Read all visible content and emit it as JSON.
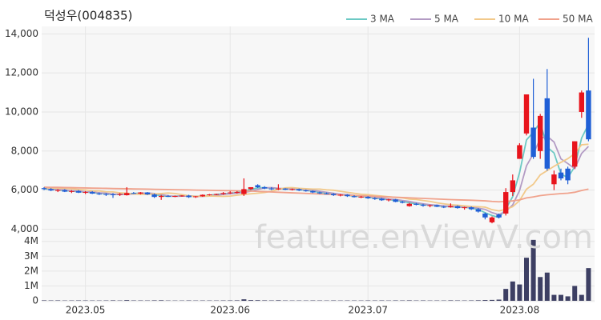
{
  "chart_data": {
    "type": "candlestick",
    "title": "덕성우(004835)",
    "watermark": "feature.enViewV.com",
    "up_color": "#e8141c",
    "down_color": "#1f5fd6",
    "grid": true,
    "categories": [
      null,
      null,
      null,
      null,
      null,
      null,
      "2023.05",
      null,
      null,
      null,
      null,
      null,
      null,
      null,
      null,
      null,
      null,
      null,
      null,
      null,
      null,
      null,
      null,
      null,
      null,
      null,
      null,
      "2023.06",
      null,
      null,
      null,
      null,
      null,
      null,
      null,
      null,
      null,
      null,
      null,
      null,
      null,
      null,
      null,
      null,
      null,
      null,
      null,
      "2023.07",
      null,
      null,
      null,
      null,
      null,
      null,
      null,
      null,
      null,
      null,
      null,
      null,
      null,
      null,
      null,
      null,
      null,
      null,
      null,
      null,
      null,
      "2023.08",
      null,
      null,
      null,
      null,
      null,
      null,
      null,
      null,
      null,
      null
    ],
    "open": [
      6100,
      6050,
      5980,
      6000,
      5920,
      5950,
      5870,
      5900,
      5820,
      5800,
      5780,
      5760,
      5740,
      5850,
      5820,
      5880,
      5780,
      5650,
      5700,
      5680,
      5700,
      5720,
      5640,
      5680,
      5760,
      5780,
      5800,
      5850,
      5880,
      5800,
      6050,
      6250,
      6150,
      6080,
      6050,
      6080,
      6020,
      6050,
      5980,
      5950,
      5880,
      5830,
      5800,
      5740,
      5760,
      5690,
      5640,
      5660,
      5580,
      5560,
      5480,
      5520,
      5400,
      5180,
      5300,
      5250,
      5200,
      5230,
      5150,
      5120,
      5180,
      5080,
      5120,
      5020,
      4800,
      4350,
      4750,
      4800,
      5900,
      7600,
      8900,
      9200,
      8000,
      10700,
      6300,
      6900,
      7100,
      7200,
      10000,
      11100
    ],
    "high": [
      6150,
      6100,
      6050,
      6050,
      6000,
      6000,
      5950,
      5950,
      5880,
      5850,
      5850,
      5850,
      6150,
      5900,
      5900,
      5900,
      5820,
      5750,
      5750,
      5720,
      5740,
      5760,
      5700,
      5780,
      5800,
      5820,
      5900,
      5950,
      5950,
      6600,
      6150,
      6300,
      6200,
      6150,
      6300,
      6100,
      6080,
      6080,
      6030,
      5980,
      5920,
      5880,
      5850,
      5800,
      5790,
      5740,
      5700,
      5690,
      5640,
      5600,
      5560,
      5550,
      5450,
      5350,
      5350,
      5300,
      5260,
      5260,
      5200,
      5320,
      5220,
      5150,
      5160,
      5080,
      4850,
      4650,
      4800,
      6100,
      6800,
      8400,
      10900,
      11700,
      9900,
      12200,
      7000,
      7100,
      7200,
      8500,
      11100,
      13800
    ],
    "low": [
      6000,
      5950,
      5900,
      5900,
      5850,
      5850,
      5800,
      5800,
      5750,
      5700,
      5600,
      5700,
      5720,
      5800,
      5780,
      5750,
      5600,
      5500,
      5650,
      5640,
      5660,
      5600,
      5600,
      5660,
      5720,
      5740,
      5760,
      5800,
      5820,
      5700,
      6000,
      6100,
      6050,
      6000,
      6000,
      6000,
      5980,
      5950,
      5920,
      5850,
      5800,
      5780,
      5700,
      5680,
      5650,
      5620,
      5590,
      5550,
      5500,
      5450,
      5420,
      5380,
      5320,
      5150,
      5220,
      5150,
      5120,
      5130,
      5080,
      5100,
      5050,
      5000,
      4980,
      4850,
      4500,
      4300,
      4550,
      4700,
      5700,
      7600,
      8800,
      7600,
      7600,
      7000,
      6000,
      6500,
      6300,
      7100,
      9700,
      8500
    ],
    "close": [
      6050,
      5980,
      6000,
      5920,
      5950,
      5870,
      5900,
      5820,
      5800,
      5780,
      5760,
      5800,
      5850,
      5820,
      5880,
      5780,
      5650,
      5700,
      5680,
      5700,
      5720,
      5640,
      5680,
      5760,
      5780,
      5800,
      5850,
      5880,
      5900,
      6050,
      6150,
      6150,
      6080,
      6050,
      6080,
      6020,
      6050,
      5980,
      5950,
      5880,
      5830,
      5800,
      5740,
      5760,
      5690,
      5640,
      5660,
      5580,
      5560,
      5480,
      5520,
      5400,
      5350,
      5300,
      5250,
      5200,
      5230,
      5150,
      5120,
      5180,
      5080,
      5120,
      5020,
      4900,
      4600,
      4600,
      4600,
      5900,
      6500,
      8300,
      10900,
      7700,
      9800,
      7100,
      6800,
      6600,
      6500,
      8500,
      11000,
      8600
    ],
    "series": [
      {
        "name": "3 MA",
        "color": "#6cc9c4",
        "values": [
          6070,
          6030,
          6010,
          5967,
          5957,
          5913,
          5907,
          5863,
          5840,
          5800,
          5780,
          5780,
          5803,
          5823,
          5850,
          5827,
          5770,
          5710,
          5677,
          5693,
          5700,
          5687,
          5680,
          5693,
          5740,
          5780,
          5810,
          5843,
          5877,
          5943,
          6033,
          6117,
          6127,
          6093,
          6070,
          6050,
          6050,
          6017,
          5993,
          5937,
          5887,
          5837,
          5790,
          5767,
          5730,
          5697,
          5663,
          5627,
          5600,
          5540,
          5520,
          5467,
          5423,
          5350,
          5300,
          5250,
          5227,
          5193,
          5167,
          5150,
          5127,
          5127,
          5073,
          5013,
          4840,
          4700,
          4600,
          5033,
          5667,
          6900,
          8567,
          8967,
          9467,
          8200,
          7900,
          6833,
          6633,
          7200,
          8667,
          9367
        ]
      },
      {
        "name": "5 MA",
        "color": "#b39bc4",
        "values": [
          6090,
          6070,
          6030,
          6010,
          5967,
          5957,
          5913,
          5907,
          5863,
          5840,
          5800,
          5780,
          5780,
          5803,
          5823,
          5850,
          5827,
          5770,
          5710,
          5677,
          5693,
          5700,
          5687,
          5680,
          5693,
          5740,
          5780,
          5810,
          5843,
          5877,
          5943,
          6033,
          6117,
          6127,
          6093,
          6070,
          6050,
          6050,
          6017,
          5993,
          5937,
          5887,
          5837,
          5790,
          5767,
          5730,
          5697,
          5663,
          5627,
          5600,
          5540,
          5520,
          5467,
          5423,
          5350,
          5300,
          5250,
          5227,
          5193,
          5167,
          5150,
          5127,
          5127,
          5073,
          5013,
          4848,
          4744,
          4920,
          5240,
          5980,
          7240,
          7860,
          8640,
          8760,
          8460,
          7600,
          7360,
          7100,
          7880,
          8240
        ]
      },
      {
        "name": "10 MA",
        "color": "#f2c98a",
        "values": [
          6120,
          6110,
          6100,
          6090,
          6070,
          6030,
          6010,
          5967,
          5957,
          5913,
          5907,
          5863,
          5840,
          5800,
          5780,
          5780,
          5803,
          5823,
          5850,
          5827,
          5770,
          5710,
          5677,
          5693,
          5700,
          5687,
          5680,
          5693,
          5740,
          5780,
          5810,
          5843,
          5877,
          5943,
          6033,
          6117,
          6127,
          6093,
          6070,
          6050,
          6050,
          6017,
          5993,
          5937,
          5887,
          5837,
          5790,
          5767,
          5730,
          5697,
          5663,
          5627,
          5600,
          5540,
          5520,
          5467,
          5423,
          5350,
          5300,
          5250,
          5227,
          5193,
          5167,
          5150,
          5127,
          5000,
          4937,
          5012,
          5150,
          5462,
          6044,
          6302,
          6780,
          7000,
          7220,
          7420,
          7610,
          7870,
          8320,
          8350
        ]
      },
      {
        "name": "50 MA",
        "color": "#f0a28c",
        "values": [
          6150,
          6145,
          6140,
          6130,
          6125,
          6115,
          6110,
          6100,
          6095,
          6090,
          6080,
          6075,
          6070,
          6060,
          6055,
          6050,
          6040,
          6035,
          6030,
          6020,
          6015,
          6010,
          6000,
          5995,
          5990,
          5980,
          5975,
          5970,
          5960,
          5955,
          5950,
          5935,
          5920,
          5905,
          5890,
          5875,
          5860,
          5845,
          5830,
          5815,
          5800,
          5785,
          5770,
          5755,
          5740,
          5725,
          5710,
          5695,
          5680,
          5665,
          5650,
          5635,
          5620,
          5605,
          5590,
          5575,
          5560,
          5545,
          5530,
          5515,
          5500,
          5490,
          5480,
          5465,
          5450,
          5420,
          5400,
          5420,
          5450,
          5500,
          5600,
          5650,
          5720,
          5760,
          5790,
          5820,
          5840,
          5890,
          5980,
          6050
        ]
      }
    ],
    "ylim": [
      3650,
      14300
    ],
    "yticks": [
      {
        "value": 4000,
        "label": "4,000"
      },
      {
        "value": 6000,
        "label": "6,000"
      },
      {
        "value": 8000,
        "label": "8,000"
      },
      {
        "value": 10000,
        "label": "10,000"
      },
      {
        "value": 12000,
        "label": "12,000"
      },
      {
        "value": 14000,
        "label": "14,000"
      }
    ],
    "volume": {
      "type": "bar",
      "color": "#3d3f63",
      "values": [
        30000,
        25000,
        28000,
        20000,
        22000,
        26000,
        24000,
        21000,
        20000,
        23000,
        30000,
        22000,
        45000,
        25000,
        24000,
        22000,
        30000,
        35000,
        20000,
        18000,
        19000,
        25000,
        20000,
        22000,
        21000,
        20000,
        24000,
        26000,
        30000,
        100000,
        45000,
        40000,
        30000,
        25000,
        35000,
        22000,
        20000,
        21000,
        20000,
        24000,
        22000,
        20000,
        25000,
        20000,
        22000,
        21000,
        20000,
        24000,
        22000,
        25000,
        20000,
        26000,
        24000,
        30000,
        22000,
        25000,
        20000,
        22000,
        21000,
        30000,
        25000,
        22000,
        26000,
        35000,
        50000,
        60000,
        80000,
        800000,
        1300000,
        1100000,
        2900000,
        4100000,
        1600000,
        1900000,
        400000,
        400000,
        300000,
        1000000,
        400000,
        2200000
      ],
      "ylim": [
        0,
        4200000
      ],
      "yticks": [
        0,
        {
          "value": 1000000,
          "label": "1M"
        },
        {
          "value": 2000000,
          "label": "2M"
        },
        {
          "value": 3000000,
          "label": "3M"
        },
        {
          "value": 4000000,
          "label": "4M"
        }
      ]
    }
  }
}
